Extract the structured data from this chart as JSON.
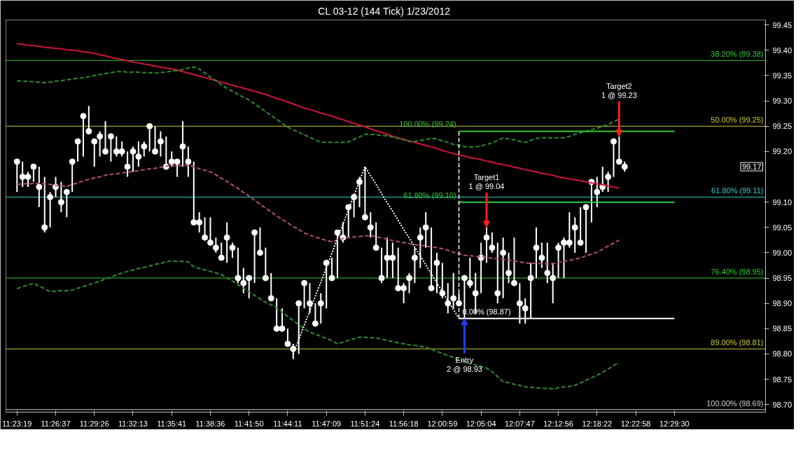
{
  "chart_data": {
    "type": "scatter",
    "title": "CL 03-12 (144 Tick)  1/23/2012",
    "categories": [
      "11:23:19",
      null,
      null,
      null,
      null,
      null,
      null,
      "11:26:37",
      null,
      null,
      null,
      null,
      null,
      null,
      "11:29:26",
      null,
      null,
      null,
      null,
      null,
      null,
      "11:32:13",
      null,
      null,
      null,
      null,
      null,
      null,
      "11:35:41",
      null,
      null,
      null,
      null,
      null,
      null,
      "11:38:36",
      null,
      null,
      null,
      null,
      null,
      null,
      "11:41:50",
      null,
      null,
      null,
      null,
      null,
      null,
      "11:44:11",
      null,
      null,
      null,
      null,
      null,
      null,
      "11:47:09",
      null,
      null,
      null,
      null,
      null,
      null,
      "11:51:24",
      null,
      null,
      null,
      null,
      null,
      null,
      "11:56:18",
      null,
      null,
      null,
      null,
      null,
      null,
      "12:00:59",
      null,
      null,
      null,
      null,
      null,
      null,
      "12:05:04",
      null,
      null,
      null,
      null,
      null,
      null,
      "12:07:47",
      null,
      null,
      null,
      null,
      null,
      null,
      "12:12:56",
      null,
      null,
      null,
      null,
      null,
      null,
      "12:18:22",
      null,
      null,
      null,
      null,
      null,
      null,
      "12:22:58",
      null,
      null,
      null,
      null,
      null,
      null,
      "12:29:30"
    ],
    "ylim": [
      98.685,
      99.46
    ],
    "yticks": [
      {
        "value": 98.7,
        "label": "98.70"
      },
      98.75,
      {
        "value": 98.8,
        "label": "98.80"
      },
      98.85,
      {
        "value": 98.9,
        "label": "98.90"
      },
      98.95,
      {
        "value": 99.0,
        "label": "99.00"
      },
      99.05,
      {
        "value": 99.1,
        "label": "99.10"
      },
      {
        "value": 99.2,
        "label": "99.20"
      },
      99.25,
      {
        "value": 99.3,
        "label": "99.30"
      },
      99.35,
      {
        "value": 99.4,
        "label": "99.40"
      },
      99.45
    ],
    "series": [
      {
        "marker": "circle",
        "color": "#ffffff",
        "values": [
          99.18,
          99.15,
          99.15,
          99.17,
          99.13,
          99.05,
          99.11,
          99.13,
          99.1,
          99.12,
          99.18,
          99.22,
          99.27,
          99.24,
          99.22,
          99.23,
          99.2,
          99.23,
          99.2,
          99.2,
          99.17,
          99.2,
          99.19,
          99.21,
          99.25,
          99.2,
          99.22,
          99.17,
          99.18,
          99.18,
          99.21,
          99.18,
          99.06,
          99.06,
          99.03,
          99.02,
          99.01,
          98.99,
          99.03,
          99.01,
          98.95,
          98.94,
          98.95,
          99.04,
          99.0,
          98.95,
          98.91,
          98.85,
          98.85,
          98.82,
          98.81,
          98.9,
          98.94,
          98.9,
          98.86,
          98.9,
          98.98,
          98.95,
          99.04,
          99.03,
          99.09,
          99.11,
          99.14,
          99.07,
          99.05,
          99.01,
          98.95,
          98.99,
          98.99,
          98.93,
          98.93,
          98.95,
          98.99,
          99.03,
          99.05,
          98.93,
          98.98,
          98.92,
          98.9,
          98.91,
          98.9,
          98.95,
          98.94,
          98.92,
          98.99,
          99.03,
          99.01,
          98.92,
          99.0,
          98.96,
          98.94,
          98.9,
          98.89,
          98.95,
          99.01,
          98.99,
          98.96,
          98.95,
          99.01,
          99.02,
          99.02,
          99.05,
          99.02,
          99.09,
          99.14,
          99.12,
          99.13,
          99.15,
          99.22,
          99.18,
          99.17,
          null,
          null,
          null,
          null,
          null,
          null,
          null,
          null,
          null
        ],
        "errors": [
          [
            99.12,
            99.18
          ],
          [
            99.13,
            99.18
          ],
          [
            99.13,
            99.16
          ],
          [
            99.14,
            99.17
          ],
          [
            99.09,
            99.17
          ],
          [
            99.04,
            99.15
          ],
          [
            99.05,
            99.12
          ],
          [
            99.11,
            99.15
          ],
          [
            99.08,
            99.14
          ],
          [
            99.07,
            99.12
          ],
          [
            99.12,
            99.18
          ],
          [
            99.18,
            99.22
          ],
          [
            99.19,
            99.27
          ],
          [
            99.24,
            99.29
          ],
          [
            99.17,
            99.22
          ],
          [
            99.19,
            99.24
          ],
          [
            99.2,
            99.26
          ],
          [
            99.18,
            99.23
          ],
          [
            99.19,
            99.23
          ],
          [
            99.19,
            99.22
          ],
          [
            99.15,
            99.2
          ],
          [
            99.16,
            99.21
          ],
          [
            99.17,
            99.22
          ],
          [
            99.19,
            99.22
          ],
          [
            99.2,
            99.25
          ],
          [
            99.2,
            99.25
          ],
          [
            99.19,
            99.24
          ],
          [
            99.17,
            99.23
          ],
          [
            99.17,
            99.2
          ],
          [
            99.15,
            99.18
          ],
          [
            99.17,
            99.26
          ],
          [
            99.15,
            99.21
          ],
          [
            99.06,
            99.18
          ],
          [
            99.04,
            99.08
          ],
          [
            99.03,
            99.07
          ],
          [
            99.02,
            99.07
          ],
          [
            99.0,
            99.03
          ],
          [
            98.99,
            99.02
          ],
          [
            98.98,
            99.06
          ],
          [
            98.99,
            99.02
          ],
          [
            98.94,
            99.01
          ],
          [
            98.92,
            98.97
          ],
          [
            98.91,
            98.95
          ],
          [
            98.94,
            99.04
          ],
          [
            99.0,
            99.05
          ],
          [
            98.95,
            99.01
          ],
          [
            98.91,
            98.96
          ],
          [
            98.85,
            98.91
          ],
          [
            98.85,
            98.89
          ],
          [
            98.82,
            98.85
          ],
          [
            98.79,
            98.82
          ],
          [
            98.8,
            98.9
          ],
          [
            98.89,
            98.94
          ],
          [
            98.88,
            98.94
          ],
          [
            98.86,
            98.9
          ],
          [
            98.86,
            98.92
          ],
          [
            98.89,
            98.98
          ],
          [
            98.95,
            98.99
          ],
          [
            98.95,
            99.04
          ],
          [
            99.02,
            99.06
          ],
          [
            99.03,
            99.09
          ],
          [
            99.07,
            99.11
          ],
          [
            99.09,
            99.15
          ],
          [
            99.07,
            99.17
          ],
          [
            99.03,
            99.08
          ],
          [
            99.01,
            99.06
          ],
          [
            98.94,
            99.01
          ],
          [
            98.95,
            99.03
          ],
          [
            98.95,
            99.02
          ],
          [
            98.93,
            99.01
          ],
          [
            98.9,
            98.94
          ],
          [
            98.92,
            98.96
          ],
          [
            98.94,
            99.01
          ],
          [
            98.97,
            99.05
          ],
          [
            99.01,
            99.08
          ],
          [
            98.93,
            99.05
          ],
          [
            98.92,
            99.0
          ],
          [
            98.91,
            98.98
          ],
          [
            98.88,
            98.94
          ],
          [
            98.89,
            98.96
          ],
          [
            98.9,
            98.92
          ],
          [
            98.87,
            98.95
          ],
          [
            98.93,
            98.99
          ],
          [
            98.88,
            98.96
          ],
          [
            98.92,
            99.02
          ],
          [
            98.98,
            99.05
          ],
          [
            99.0,
            99.04
          ],
          [
            98.9,
            99.02
          ],
          [
            98.91,
            99.03
          ],
          [
            98.94,
            99.0
          ],
          [
            98.94,
            99.03
          ],
          [
            98.86,
            98.94
          ],
          [
            98.86,
            98.91
          ],
          [
            98.87,
            98.98
          ],
          [
            98.95,
            99.05
          ],
          [
            98.97,
            99.02
          ],
          [
            98.94,
            99.02
          ],
          [
            98.9,
            98.98
          ],
          [
            98.95,
            99.02
          ],
          [
            98.95,
            99.03
          ],
          [
            99.01,
            99.08
          ],
          [
            99.0,
            99.07
          ],
          [
            99.02,
            99.09
          ],
          [
            99.0,
            99.09
          ],
          [
            99.06,
            99.14
          ],
          [
            99.09,
            99.15
          ],
          [
            99.12,
            99.17
          ],
          [
            99.12,
            99.16
          ],
          [
            99.15,
            99.22
          ],
          [
            99.18,
            99.23
          ],
          [
            99.16,
            99.18
          ],
          null,
          null,
          null,
          null,
          null,
          null,
          null,
          null,
          null
        ]
      },
      {
        "type": "line",
        "color": "#d0143c",
        "values": [
          99.413,
          99.412,
          99.41,
          99.409,
          99.408,
          99.406,
          99.405,
          99.404,
          99.403,
          99.401,
          99.4,
          99.399,
          99.397,
          99.396,
          99.394,
          99.391,
          99.389,
          99.386,
          99.384,
          99.382,
          99.379,
          99.377,
          99.375,
          99.373,
          99.371,
          99.369,
          99.367,
          99.365,
          99.363,
          99.361,
          99.358,
          99.355,
          99.352,
          99.349,
          99.346,
          99.343,
          99.34,
          99.337,
          99.334,
          99.331,
          99.328,
          99.325,
          99.322,
          99.319,
          99.316,
          99.313,
          99.309,
          99.305,
          99.302,
          99.298,
          99.294,
          99.29,
          99.286,
          99.283,
          99.28,
          99.276,
          99.273,
          99.27,
          99.266,
          99.263,
          99.259,
          99.256,
          99.252,
          99.249,
          99.245,
          99.241,
          99.238,
          99.234,
          99.23,
          99.227,
          99.224,
          99.221,
          99.218,
          99.215,
          99.212,
          99.209,
          99.206,
          99.202,
          99.199,
          99.196,
          99.193,
          99.191,
          99.188,
          99.186,
          99.184,
          99.181,
          99.179,
          99.176,
          99.174,
          99.172,
          99.169,
          99.167,
          99.164,
          99.162,
          99.16,
          99.157,
          99.155,
          99.153,
          99.15,
          99.148,
          99.146,
          99.144,
          99.142,
          99.14,
          99.138,
          99.136,
          99.134,
          99.132,
          99.13,
          99.128,
          null,
          null,
          null,
          null,
          null,
          null,
          null,
          null,
          null,
          null
        ]
      },
      {
        "type": "line",
        "color": "#b0506e",
        "line_style": "dashed",
        "values": [
          99.135,
          99.136,
          99.136,
          99.137,
          99.137,
          99.136,
          99.135,
          99.133,
          99.132,
          99.131,
          99.135,
          99.138,
          99.142,
          99.145,
          99.148,
          99.15,
          99.153,
          99.155,
          99.156,
          99.158,
          99.159,
          99.161,
          99.162,
          99.164,
          99.166,
          99.167,
          99.169,
          99.171,
          99.172,
          99.172,
          99.173,
          99.173,
          99.17,
          99.166,
          99.163,
          99.16,
          99.154,
          99.147,
          99.141,
          99.134,
          99.127,
          99.119,
          99.112,
          99.104,
          99.096,
          99.088,
          99.081,
          99.073,
          99.066,
          99.059,
          99.052,
          99.046,
          99.039,
          99.035,
          99.031,
          99.028,
          99.024,
          99.022,
          99.025,
          99.028,
          99.03,
          99.031,
          99.032,
          99.033,
          99.034,
          99.032,
          99.029,
          99.027,
          99.024,
          99.022,
          99.02,
          99.018,
          99.016,
          99.015,
          99.013,
          99.012,
          99.01,
          99.008,
          99.005,
          99.001,
          98.998,
          98.995,
          98.994,
          98.993,
          98.992,
          98.991,
          98.989,
          98.988,
          98.987,
          98.986,
          98.984,
          98.982,
          98.98,
          98.979,
          98.979,
          98.978,
          98.978,
          98.978,
          98.981,
          98.983,
          98.985,
          98.987,
          98.99,
          98.994,
          98.997,
          99.001,
          99.007,
          99.013,
          99.019,
          99.025,
          null,
          null,
          null,
          null,
          null,
          null,
          null,
          null,
          null,
          null
        ]
      },
      {
        "type": "line",
        "color": "#2e8b2e",
        "line_style": "dashed",
        "values": [
          99.34,
          99.339,
          99.339,
          99.338,
          99.337,
          99.336,
          99.337,
          99.339,
          99.34,
          99.342,
          99.343,
          99.345,
          99.346,
          99.348,
          99.35,
          99.352,
          99.354,
          99.356,
          99.358,
          99.358,
          99.357,
          99.357,
          99.357,
          99.356,
          99.356,
          99.355,
          99.356,
          99.357,
          99.359,
          99.36,
          99.362,
          99.365,
          99.367,
          99.363,
          99.355,
          99.347,
          99.34,
          99.332,
          99.325,
          99.319,
          99.313,
          99.307,
          99.302,
          99.294,
          99.287,
          99.279,
          99.271,
          99.264,
          99.256,
          99.248,
          99.243,
          99.238,
          99.233,
          99.228,
          99.223,
          99.218,
          99.218,
          99.218,
          99.218,
          99.218,
          99.219,
          99.224,
          99.229,
          99.234,
          99.234,
          99.233,
          99.232,
          99.231,
          99.229,
          99.226,
          99.223,
          99.22,
          99.22,
          99.222,
          99.224,
          99.226,
          99.225,
          99.221,
          99.218,
          99.214,
          99.212,
          99.21,
          99.209,
          99.209,
          99.211,
          99.214,
          99.217,
          99.222,
          99.227,
          99.225,
          99.223,
          99.22,
          99.218,
          99.222,
          99.226,
          99.227,
          99.227,
          99.227,
          99.227,
          99.227,
          99.23,
          99.234,
          99.237,
          99.24,
          99.243,
          99.246,
          99.25,
          99.253,
          99.259,
          99.264,
          null,
          null,
          null,
          null,
          null,
          null,
          null,
          null,
          null,
          null
        ]
      },
      {
        "type": "line",
        "color": "#2e8b2e",
        "line_style": "dashed",
        "values": [
          98.929,
          98.933,
          98.936,
          98.94,
          98.934,
          98.929,
          98.923,
          98.924,
          98.925,
          98.925,
          98.926,
          98.93,
          98.933,
          98.937,
          98.94,
          98.944,
          98.948,
          98.952,
          98.956,
          98.96,
          98.963,
          98.966,
          98.969,
          98.971,
          98.974,
          98.977,
          98.979,
          98.982,
          98.984,
          98.983,
          98.983,
          98.982,
          98.972,
          98.969,
          98.966,
          98.963,
          98.96,
          98.957,
          98.95,
          98.944,
          98.937,
          98.93,
          98.923,
          98.916,
          98.909,
          98.902,
          98.897,
          98.891,
          98.883,
          98.874,
          98.866,
          98.858,
          98.85,
          98.843,
          98.839,
          98.835,
          98.831,
          98.826,
          98.82,
          98.823,
          98.827,
          98.83,
          98.833,
          98.833,
          98.832,
          98.832,
          98.829,
          98.827,
          98.824,
          98.822,
          98.82,
          98.818,
          98.817,
          98.815,
          98.813,
          98.809,
          98.805,
          98.801,
          98.797,
          98.793,
          98.789,
          98.785,
          98.781,
          98.778,
          98.775,
          98.772,
          98.765,
          98.755,
          98.745,
          98.743,
          98.74,
          98.738,
          98.735,
          98.734,
          98.733,
          98.732,
          98.732,
          98.731,
          98.733,
          98.735,
          98.736,
          98.738,
          98.743,
          98.748,
          98.753,
          98.758,
          98.764,
          98.77,
          98.777,
          98.783,
          null,
          null,
          null,
          null,
          null,
          null,
          null,
          null,
          null,
          null
        ]
      },
      {
        "type": "line",
        "color": "#ffffff",
        "line_style": "dotted",
        "values": [
          null,
          null,
          null,
          null,
          null,
          null,
          null,
          null,
          null,
          null,
          null,
          null,
          null,
          null,
          null,
          null,
          null,
          null,
          null,
          null,
          null,
          null,
          null,
          null,
          null,
          null,
          null,
          null,
          null,
          null,
          null,
          null,
          null,
          null,
          null,
          null,
          null,
          null,
          null,
          null,
          null,
          null,
          null,
          null,
          null,
          null,
          null,
          null,
          null,
          null,
          98.8,
          98.828,
          98.857,
          98.885,
          98.914,
          98.942,
          98.971,
          98.999,
          99.028,
          99.056,
          99.085,
          99.113,
          99.142,
          99.17,
          99.152,
          99.135,
          99.117,
          99.099,
          99.082,
          99.064,
          99.046,
          99.029,
          99.011,
          98.994,
          98.976,
          98.958,
          98.94,
          98.923,
          98.905,
          98.888,
          98.87,
          null,
          null,
          null,
          null,
          null,
          null,
          null,
          null,
          null,
          null,
          null,
          null,
          null,
          null,
          null,
          null,
          null,
          null,
          null,
          null,
          null,
          null,
          null,
          null,
          null,
          null,
          null,
          null,
          null,
          null,
          null,
          null,
          null,
          null,
          null,
          null,
          null,
          null,
          null
        ]
      },
      {
        "type": "line",
        "name": "100.00% (99.24)",
        "color": "#33cc33",
        "values": [
          null,
          null,
          null,
          null,
          null,
          null,
          null,
          null,
          null,
          null,
          null,
          null,
          null,
          null,
          null,
          null,
          null,
          null,
          null,
          null,
          null,
          null,
          null,
          null,
          null,
          null,
          null,
          null,
          null,
          null,
          null,
          null,
          null,
          null,
          null,
          null,
          null,
          null,
          null,
          null,
          null,
          null,
          null,
          null,
          null,
          null,
          null,
          null,
          null,
          null,
          null,
          null,
          null,
          null,
          null,
          null,
          null,
          null,
          null,
          null,
          null,
          null,
          null,
          null,
          null,
          null,
          null,
          null,
          null,
          null,
          null,
          null,
          null,
          null,
          null,
          null,
          null,
          null,
          null,
          null,
          99.24,
          99.24,
          99.24,
          99.24,
          99.24,
          99.24,
          99.24,
          99.24,
          99.24,
          99.24,
          99.24,
          99.24,
          99.24,
          99.24,
          99.24,
          99.24,
          99.24,
          99.24,
          99.24,
          99.24,
          99.24,
          99.24,
          99.24,
          99.24,
          99.24,
          99.24,
          99.24,
          99.24,
          99.24,
          99.24,
          99.24,
          99.24,
          99.24,
          99.24,
          99.24,
          99.24,
          99.24,
          99.24,
          99.24,
          99.24
        ]
      },
      {
        "type": "line",
        "name": "61.80% (99.10)",
        "color": "#33cc33",
        "values": [
          null,
          null,
          null,
          null,
          null,
          null,
          null,
          null,
          null,
          null,
          null,
          null,
          null,
          null,
          null,
          null,
          null,
          null,
          null,
          null,
          null,
          null,
          null,
          null,
          null,
          null,
          null,
          null,
          null,
          null,
          null,
          null,
          null,
          null,
          null,
          null,
          null,
          null,
          null,
          null,
          null,
          null,
          null,
          null,
          null,
          null,
          null,
          null,
          null,
          null,
          null,
          null,
          null,
          null,
          null,
          null,
          null,
          null,
          null,
          null,
          null,
          null,
          null,
          null,
          null,
          null,
          null,
          null,
          null,
          null,
          null,
          null,
          null,
          null,
          null,
          null,
          null,
          null,
          null,
          null,
          99.1,
          99.1,
          99.1,
          99.1,
          99.1,
          99.1,
          99.1,
          99.1,
          99.1,
          99.1,
          99.1,
          99.1,
          99.1,
          99.1,
          99.1,
          99.1,
          99.1,
          99.1,
          99.1,
          99.1,
          99.1,
          99.1,
          99.1,
          99.1,
          99.1,
          99.1,
          99.1,
          99.1,
          99.1,
          99.1,
          99.1,
          99.1,
          99.1,
          99.1,
          99.1,
          99.1,
          99.1,
          99.1,
          99.1,
          99.1
        ]
      },
      {
        "type": "line",
        "name": "0.00% (98.87)",
        "color": "#ffffff",
        "values": [
          null,
          null,
          null,
          null,
          null,
          null,
          null,
          null,
          null,
          null,
          null,
          null,
          null,
          null,
          null,
          null,
          null,
          null,
          null,
          null,
          null,
          null,
          null,
          null,
          null,
          null,
          null,
          null,
          null,
          null,
          null,
          null,
          null,
          null,
          null,
          null,
          null,
          null,
          null,
          null,
          null,
          null,
          null,
          null,
          null,
          null,
          null,
          null,
          null,
          null,
          null,
          null,
          null,
          null,
          null,
          null,
          null,
          null,
          null,
          null,
          null,
          null,
          null,
          null,
          null,
          null,
          null,
          null,
          null,
          null,
          null,
          null,
          null,
          null,
          null,
          null,
          null,
          null,
          null,
          null,
          98.87,
          98.87,
          98.87,
          98.87,
          98.87,
          98.87,
          98.87,
          98.87,
          98.87,
          98.87,
          98.87,
          98.87,
          98.87,
          98.87,
          98.87,
          98.87,
          98.87,
          98.87,
          98.87,
          98.87,
          98.87,
          98.87,
          98.87,
          98.87,
          98.87,
          98.87,
          98.87,
          98.87,
          98.87,
          98.87,
          98.87,
          98.87,
          98.87,
          98.87,
          98.87,
          98.87,
          98.87,
          98.87,
          98.87,
          98.87
        ]
      }
    ],
    "ref_lines": [
      {
        "axis": "y",
        "value": 99.38,
        "label": "38.20% (99.38)",
        "color": "#33cc33"
      },
      {
        "axis": "y",
        "value": 99.25,
        "label": "50.00% (99.25)",
        "color": "#cccc33"
      },
      {
        "axis": "y",
        "value": 99.11,
        "label": "61.80% (99.11)",
        "color": "#33cccc"
      },
      {
        "axis": "y",
        "value": 98.95,
        "label": "76.40% (98.95)",
        "color": "#33cc33"
      },
      {
        "axis": "y",
        "value": 98.81,
        "label": "89.00% (98.81)",
        "color": "#cccc33"
      },
      {
        "axis": "y",
        "value": 98.69,
        "label": "100.00% (98.69)",
        "color": "#d0d0d0"
      }
    ],
    "annotations": [
      "Entry",
      "2 @ 98.93",
      "Target1",
      "1 @ 99.04",
      "Target2",
      "1 @ 99.23",
      "99.17"
    ]
  }
}
